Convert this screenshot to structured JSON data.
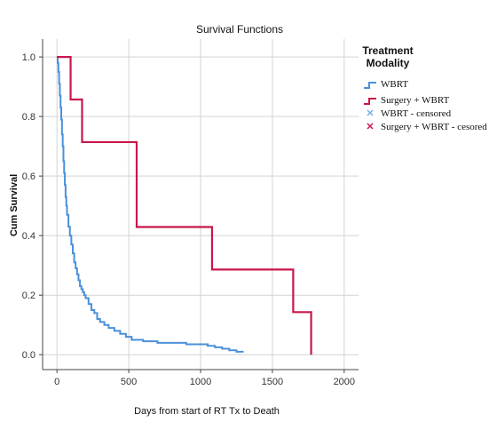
{
  "chart_data": {
    "type": "line",
    "title": "Survival Functions",
    "xlabel": "Days from start of RT Tx to Death",
    "ylabel": "Cum Survival",
    "xlim": [
      -100,
      2100
    ],
    "ylim": [
      -0.05,
      1.06
    ],
    "xticks": [
      0,
      500,
      1000,
      1500,
      2000
    ],
    "yticks": [
      0.0,
      0.2,
      0.4,
      0.6,
      0.8,
      1.0
    ],
    "xtick_labels": [
      "0",
      "500",
      "1000",
      "1500",
      "2000"
    ],
    "ytick_labels": [
      "0.0",
      "0.2",
      "0.4",
      "0.6",
      "0.8",
      "1.0"
    ],
    "grid": true,
    "legend_position": "right",
    "legend_title": [
      "Treatment",
      "Modality"
    ],
    "series": [
      {
        "name": "WBRT",
        "color": "#4a90d9",
        "step": true,
        "points": [
          [
            0,
            1.0
          ],
          [
            5,
            0.98
          ],
          [
            10,
            0.95
          ],
          [
            15,
            0.91
          ],
          [
            20,
            0.87
          ],
          [
            25,
            0.83
          ],
          [
            30,
            0.79
          ],
          [
            35,
            0.74
          ],
          [
            40,
            0.7
          ],
          [
            45,
            0.65
          ],
          [
            50,
            0.61
          ],
          [
            55,
            0.57
          ],
          [
            60,
            0.53
          ],
          [
            65,
            0.5
          ],
          [
            70,
            0.47
          ],
          [
            80,
            0.43
          ],
          [
            90,
            0.4
          ],
          [
            100,
            0.37
          ],
          [
            110,
            0.34
          ],
          [
            120,
            0.31
          ],
          [
            130,
            0.29
          ],
          [
            140,
            0.27
          ],
          [
            150,
            0.25
          ],
          [
            160,
            0.23
          ],
          [
            170,
            0.22
          ],
          [
            180,
            0.21
          ],
          [
            190,
            0.2
          ],
          [
            200,
            0.19
          ],
          [
            220,
            0.17
          ],
          [
            240,
            0.15
          ],
          [
            260,
            0.14
          ],
          [
            280,
            0.12
          ],
          [
            300,
            0.11
          ],
          [
            330,
            0.1
          ],
          [
            360,
            0.09
          ],
          [
            400,
            0.08
          ],
          [
            440,
            0.07
          ],
          [
            480,
            0.06
          ],
          [
            520,
            0.05
          ],
          [
            600,
            0.045
          ],
          [
            700,
            0.04
          ],
          [
            800,
            0.04
          ],
          [
            900,
            0.035
          ],
          [
            1000,
            0.035
          ],
          [
            1050,
            0.03
          ],
          [
            1100,
            0.025
          ],
          [
            1150,
            0.02
          ],
          [
            1200,
            0.015
          ],
          [
            1250,
            0.01
          ],
          [
            1300,
            0.01
          ]
        ]
      },
      {
        "name": "Surgery + WBRT",
        "color": "#c8174a",
        "step": true,
        "points": [
          [
            0,
            1.0
          ],
          [
            95,
            0.857
          ],
          [
            175,
            0.714
          ],
          [
            555,
            0.429
          ],
          [
            1080,
            0.286
          ],
          [
            1645,
            0.143
          ],
          [
            1770,
            0.0
          ]
        ]
      }
    ],
    "censored_legend": [
      {
        "name": "WBRT - censored",
        "color": "#7fa9e0"
      },
      {
        "name": "Surgery + WBRT - cesored",
        "color": "#c8174a"
      }
    ]
  }
}
